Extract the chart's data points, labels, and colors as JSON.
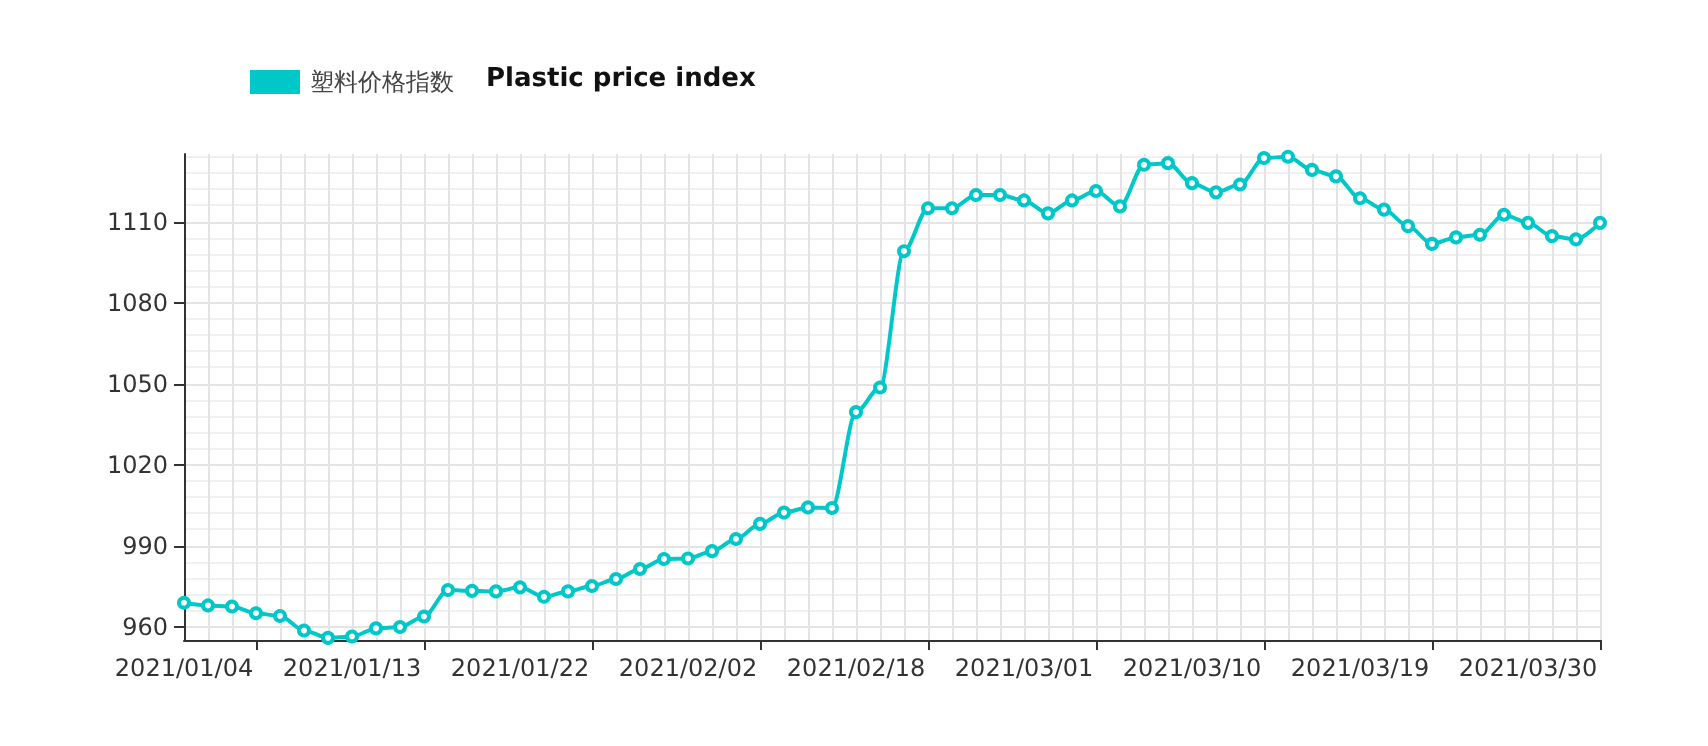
{
  "chart_data": {
    "type": "line",
    "title": "Plastic price index",
    "categories": [
      "2021/01/04",
      null,
      null,
      null,
      null,
      null,
      null,
      "2021/01/13",
      null,
      null,
      null,
      null,
      null,
      null,
      "2021/01/22",
      null,
      null,
      null,
      null,
      null,
      null,
      "2021/02/02",
      null,
      null,
      null,
      null,
      null,
      null,
      "2021/02/18",
      null,
      null,
      null,
      null,
      null,
      null,
      "2021/03/01",
      null,
      null,
      null,
      null,
      null,
      null,
      "2021/03/10",
      null,
      null,
      null,
      null,
      null,
      null,
      "2021/03/19",
      null,
      null,
      null,
      null,
      null,
      null,
      "2021/03/30",
      null,
      null,
      null
    ],
    "series": [
      {
        "name": "塑料价格指数",
        "color": "#00c8c8",
        "values": [
          968.8,
          967.8,
          967.4,
          964.9,
          963.9,
          958.5,
          955.8,
          956.3,
          959.3,
          959.8,
          963.7,
          973.5,
          973.2,
          973,
          974.5,
          971,
          973,
          975,
          977.6,
          981.3,
          985,
          985.2,
          987.9,
          992.4,
          998,
          1002.2,
          1004.1,
          1003.9,
          1039.4,
          1048.5,
          1099,
          1114.9,
          1114.9,
          1119.8,
          1119.8,
          1117.8,
          1113,
          1117.8,
          1121.3,
          1115.6,
          1131,
          1131.6,
          1124.2,
          1120.8,
          1123.7,
          1133.5,
          1134,
          1129.1,
          1126.7,
          1118.6,
          1114.4,
          1108.3,
          1101.7,
          1104.1,
          1105.1,
          1112.5,
          1109.5,
          1104.6,
          1103.4,
          1109.5
        ]
      }
    ],
    "ylim": [
      955,
      1135
    ],
    "yticks": [
      960,
      990,
      1020,
      1050,
      1080,
      1110
    ],
    "grid": true,
    "legend": "top left",
    "marker": "circle",
    "line_style": "solid"
  }
}
